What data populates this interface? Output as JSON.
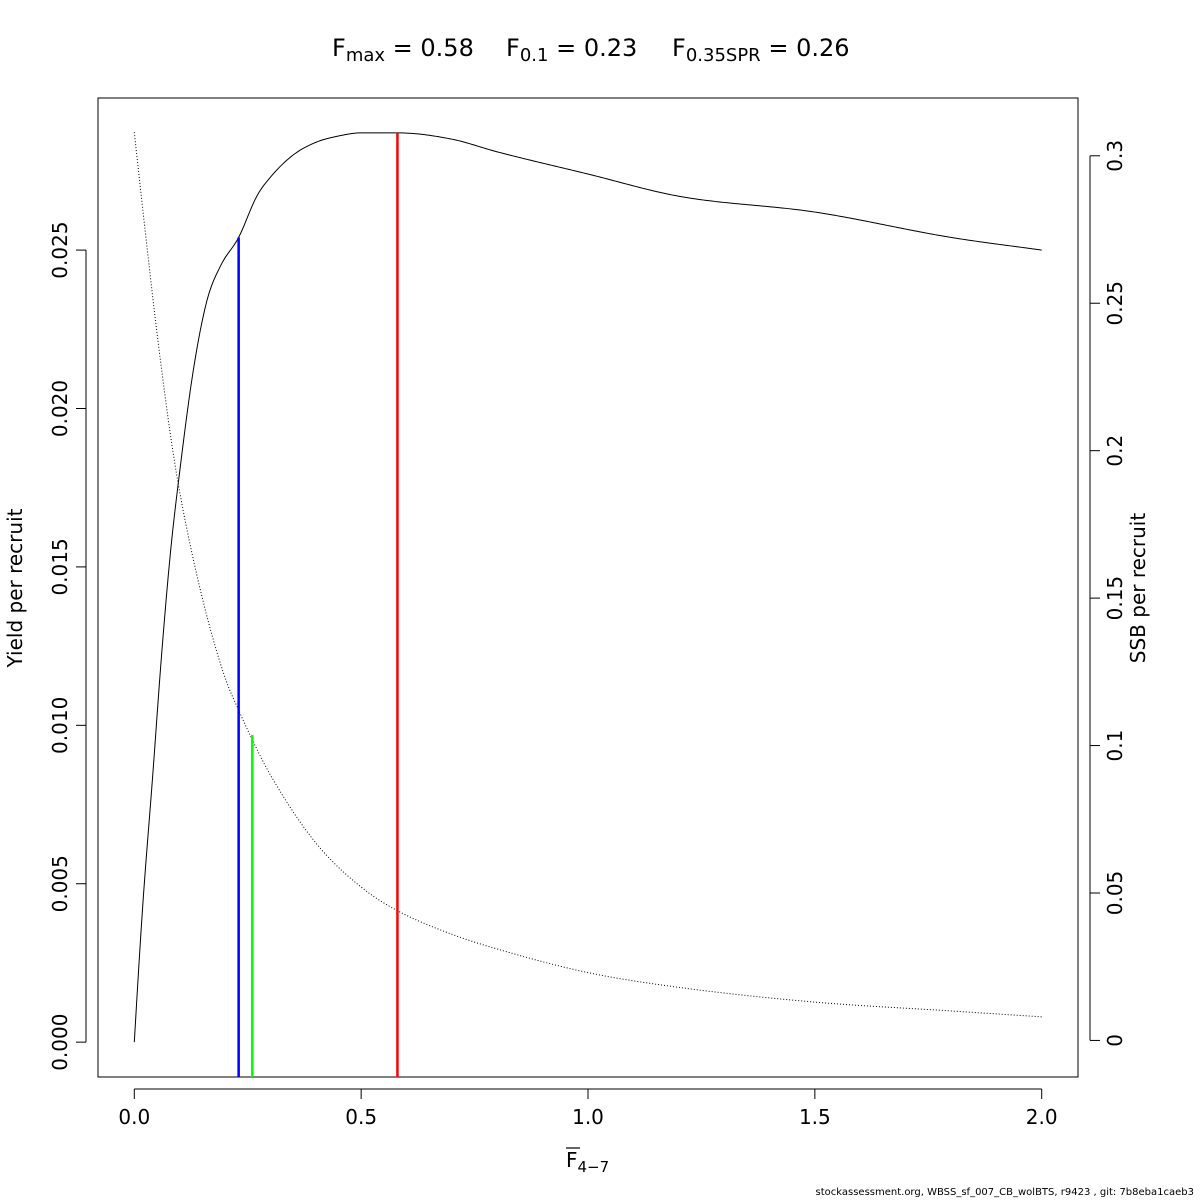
{
  "title": {
    "fmax": {
      "base": "F",
      "sub": "max",
      "eq": " = ",
      "value": "0.58"
    },
    "f01": {
      "base": "F",
      "sub": "0.1",
      "eq": " = ",
      "value": "0.23"
    },
    "f035spr": {
      "base": "F",
      "sub": "0.35SPR",
      "eq": " = ",
      "value": "0.26"
    }
  },
  "footer": "stockassessment.org, WBSS_sf_007_CB_wolBTS, r9423 , git: 7b8eba1caeb3",
  "chart_data": {
    "type": "line",
    "xlabel": {
      "base": "F",
      "sub": "4−7"
    },
    "ylabel": "Yield per recruit",
    "y2label": "SSB per recruit",
    "xlim": [
      -0.08,
      2.08
    ],
    "ylim": [
      -0.0011,
      0.0298
    ],
    "y2lim": [
      -0.0124,
      0.3196
    ],
    "xticks": [
      "0.0",
      "0.5",
      "1.0",
      "1.5",
      "2.0"
    ],
    "yticks": [
      "0.000",
      "0.005",
      "0.010",
      "0.015",
      "0.020",
      "0.025"
    ],
    "y2ticks": [
      "0",
      "0.05",
      "0.1",
      "0.15",
      "0.2",
      "0.25",
      "0.3"
    ],
    "grid": false,
    "series": [
      {
        "name": "Yield per recruit",
        "axis": "left",
        "style": "solid",
        "color": "#000000",
        "x": [
          0,
          0.01,
          0.02,
          0.04,
          0.06,
          0.08,
          0.1,
          0.13,
          0.16,
          0.19,
          0.23,
          0.27,
          0.3,
          0.35,
          0.4,
          0.45,
          0.5,
          0.58,
          0.7,
          0.8,
          1.0,
          1.2,
          1.5,
          1.8,
          2.0
        ],
        "values": [
          0.0,
          0.0024,
          0.0046,
          0.0083,
          0.0122,
          0.0155,
          0.018,
          0.0212,
          0.0234,
          0.0245,
          0.0254,
          0.0267,
          0.0273,
          0.028,
          0.0284,
          0.0286,
          0.0287,
          0.0287,
          0.0285,
          0.0281,
          0.0274,
          0.0267,
          0.0262,
          0.0254,
          0.025
        ]
      },
      {
        "name": "SSB per recruit",
        "axis": "right",
        "style": "dotted",
        "color": "#000000",
        "x": [
          0,
          0.02,
          0.05,
          0.08,
          0.1,
          0.15,
          0.2,
          0.23,
          0.26,
          0.3,
          0.4,
          0.5,
          0.58,
          0.7,
          0.8,
          1.0,
          1.2,
          1.5,
          1.8,
          2.0
        ],
        "values": [
          0.308,
          0.28,
          0.24,
          0.205,
          0.186,
          0.15,
          0.123,
          0.112,
          0.102,
          0.09,
          0.067,
          0.052,
          0.044,
          0.036,
          0.031,
          0.023,
          0.018,
          0.013,
          0.01,
          0.008
        ]
      }
    ],
    "ref_lines": [
      {
        "name": "F0.1",
        "x": 0.23,
        "y_top": 0.0254,
        "color": "#0000ff"
      },
      {
        "name": "F0.35SPR",
        "x": 0.26,
        "y_top": 0.0097,
        "color": "#00ff00"
      },
      {
        "name": "Fmax",
        "x": 0.58,
        "y_top": 0.0287,
        "color": "#ff0000"
      }
    ]
  }
}
